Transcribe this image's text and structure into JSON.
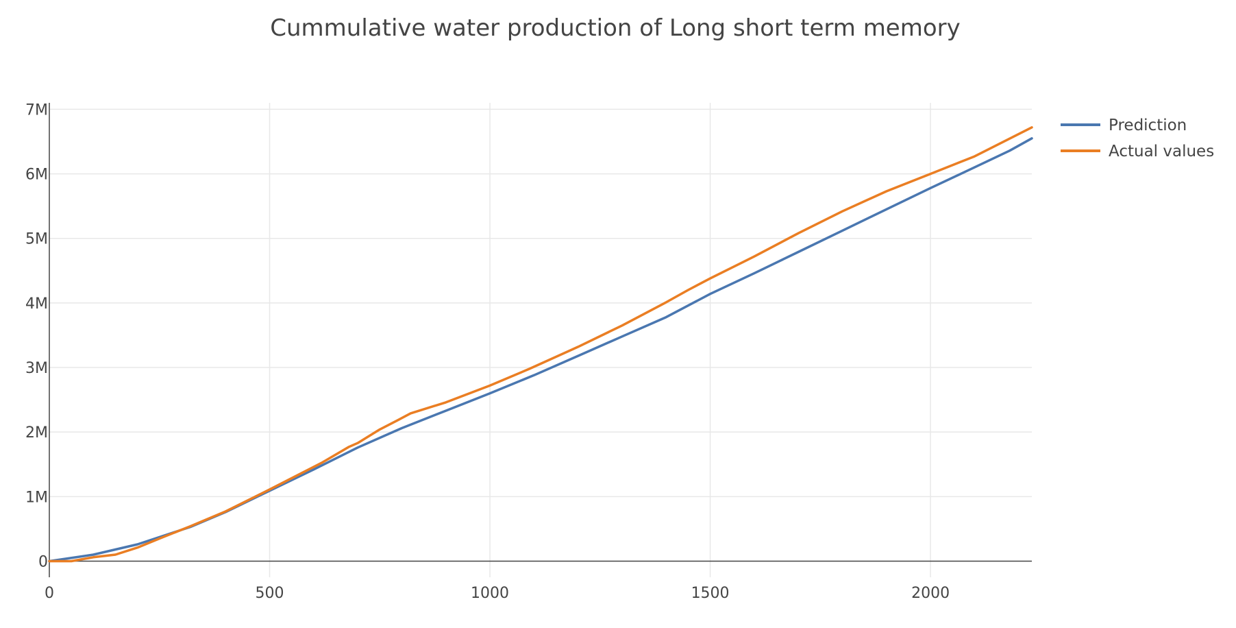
{
  "chart_data": {
    "type": "line",
    "title": "Cummulative water production of Long short term memory",
    "xlabel": "",
    "ylabel": "",
    "xlim": [
      0,
      2230
    ],
    "ylim": [
      -250000,
      7100000
    ],
    "xticks": [
      {
        "value": 0,
        "label": "0"
      },
      {
        "value": 500,
        "label": "500"
      },
      {
        "value": 1000,
        "label": "1000"
      },
      {
        "value": 1500,
        "label": "1500"
      },
      {
        "value": 2000,
        "label": "2000"
      }
    ],
    "yticks": [
      {
        "value": 0,
        "label": "0"
      },
      {
        "value": 1000000,
        "label": "1M"
      },
      {
        "value": 2000000,
        "label": "2M"
      },
      {
        "value": 3000000,
        "label": "3M"
      },
      {
        "value": 4000000,
        "label": "4M"
      },
      {
        "value": 5000000,
        "label": "5M"
      },
      {
        "value": 6000000,
        "label": "6M"
      },
      {
        "value": 7000000,
        "label": "7M"
      }
    ],
    "grid": true,
    "legend_position": "top-right",
    "series": [
      {
        "name": "Prediction",
        "color": "#4a77b0",
        "points": [
          [
            0,
            0
          ],
          [
            100,
            100000
          ],
          [
            200,
            260000
          ],
          [
            320,
            530000
          ],
          [
            400,
            760000
          ],
          [
            500,
            1090000
          ],
          [
            600,
            1420000
          ],
          [
            700,
            1760000
          ],
          [
            800,
            2060000
          ],
          [
            900,
            2330000
          ],
          [
            1000,
            2600000
          ],
          [
            1100,
            2880000
          ],
          [
            1200,
            3180000
          ],
          [
            1300,
            3480000
          ],
          [
            1400,
            3780000
          ],
          [
            1500,
            4140000
          ],
          [
            1600,
            4460000
          ],
          [
            1700,
            4790000
          ],
          [
            1800,
            5120000
          ],
          [
            1900,
            5450000
          ],
          [
            2000,
            5780000
          ],
          [
            2100,
            6100000
          ],
          [
            2180,
            6360000
          ],
          [
            2230,
            6550000
          ]
        ]
      },
      {
        "name": "Actual values",
        "color": "#ea7e23",
        "points": [
          [
            0,
            0
          ],
          [
            50,
            0
          ],
          [
            100,
            60000
          ],
          [
            150,
            100000
          ],
          [
            200,
            210000
          ],
          [
            250,
            350000
          ],
          [
            320,
            540000
          ],
          [
            400,
            770000
          ],
          [
            500,
            1110000
          ],
          [
            620,
            1530000
          ],
          [
            680,
            1770000
          ],
          [
            700,
            1830000
          ],
          [
            750,
            2040000
          ],
          [
            790,
            2180000
          ],
          [
            820,
            2290000
          ],
          [
            900,
            2460000
          ],
          [
            1000,
            2720000
          ],
          [
            1090,
            2980000
          ],
          [
            1200,
            3320000
          ],
          [
            1300,
            3650000
          ],
          [
            1400,
            4010000
          ],
          [
            1450,
            4200000
          ],
          [
            1500,
            4380000
          ],
          [
            1600,
            4720000
          ],
          [
            1700,
            5080000
          ],
          [
            1800,
            5420000
          ],
          [
            1900,
            5730000
          ],
          [
            2000,
            6000000
          ],
          [
            2100,
            6270000
          ],
          [
            2230,
            6720000
          ]
        ]
      }
    ]
  }
}
